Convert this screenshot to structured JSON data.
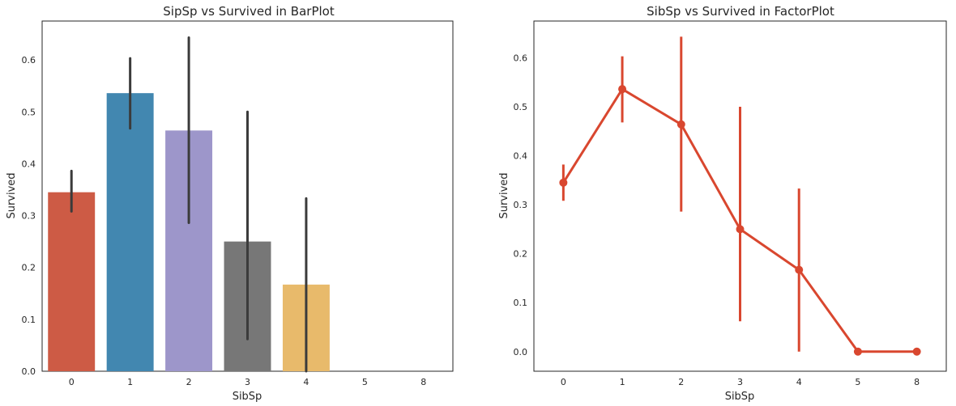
{
  "chart_data": [
    {
      "type": "bar",
      "title": "SipSp vs Survived in BarPlot",
      "xlabel": "SibSp",
      "ylabel": "Survived",
      "categories": [
        "0",
        "1",
        "2",
        "3",
        "4",
        "5",
        "8"
      ],
      "values": [
        0.345,
        0.536,
        0.464,
        0.25,
        0.167,
        0.0,
        0.0
      ],
      "error_low": [
        0.308,
        0.468,
        0.286,
        0.062,
        0.0,
        0.0,
        0.0
      ],
      "error_high": [
        0.386,
        0.603,
        0.643,
        0.5,
        0.333,
        0.0,
        0.0
      ],
      "colors": [
        "#cd5b45",
        "#4287b0",
        "#9d96ca",
        "#777777",
        "#e8ba6b",
        "#ffffff",
        "#ffffff"
      ],
      "error_color": "#3b3b3b",
      "yticks": [
        "0.0",
        "0.1",
        "0.2",
        "0.3",
        "0.4",
        "0.5",
        "0.6"
      ],
      "ylim": [
        0,
        0.675
      ],
      "grid": false
    },
    {
      "type": "line",
      "title": "SibSp vs Survived in FactorPlot",
      "xlabel": "SibSp",
      "ylabel": "Survived",
      "categories": [
        "0",
        "1",
        "2",
        "3",
        "4",
        "5",
        "8"
      ],
      "values": [
        0.345,
        0.536,
        0.464,
        0.25,
        0.167,
        0.0,
        0.0
      ],
      "error_low": [
        0.308,
        0.468,
        0.286,
        0.062,
        0.0,
        0.0,
        0.0
      ],
      "error_high": [
        0.382,
        0.603,
        0.643,
        0.5,
        0.333,
        0.0,
        0.0
      ],
      "color": "#d9472f",
      "yticks": [
        "0.0",
        "0.1",
        "0.2",
        "0.3",
        "0.4",
        "0.5",
        "0.6"
      ],
      "ylim": [
        -0.04,
        0.675
      ],
      "grid": false
    }
  ]
}
